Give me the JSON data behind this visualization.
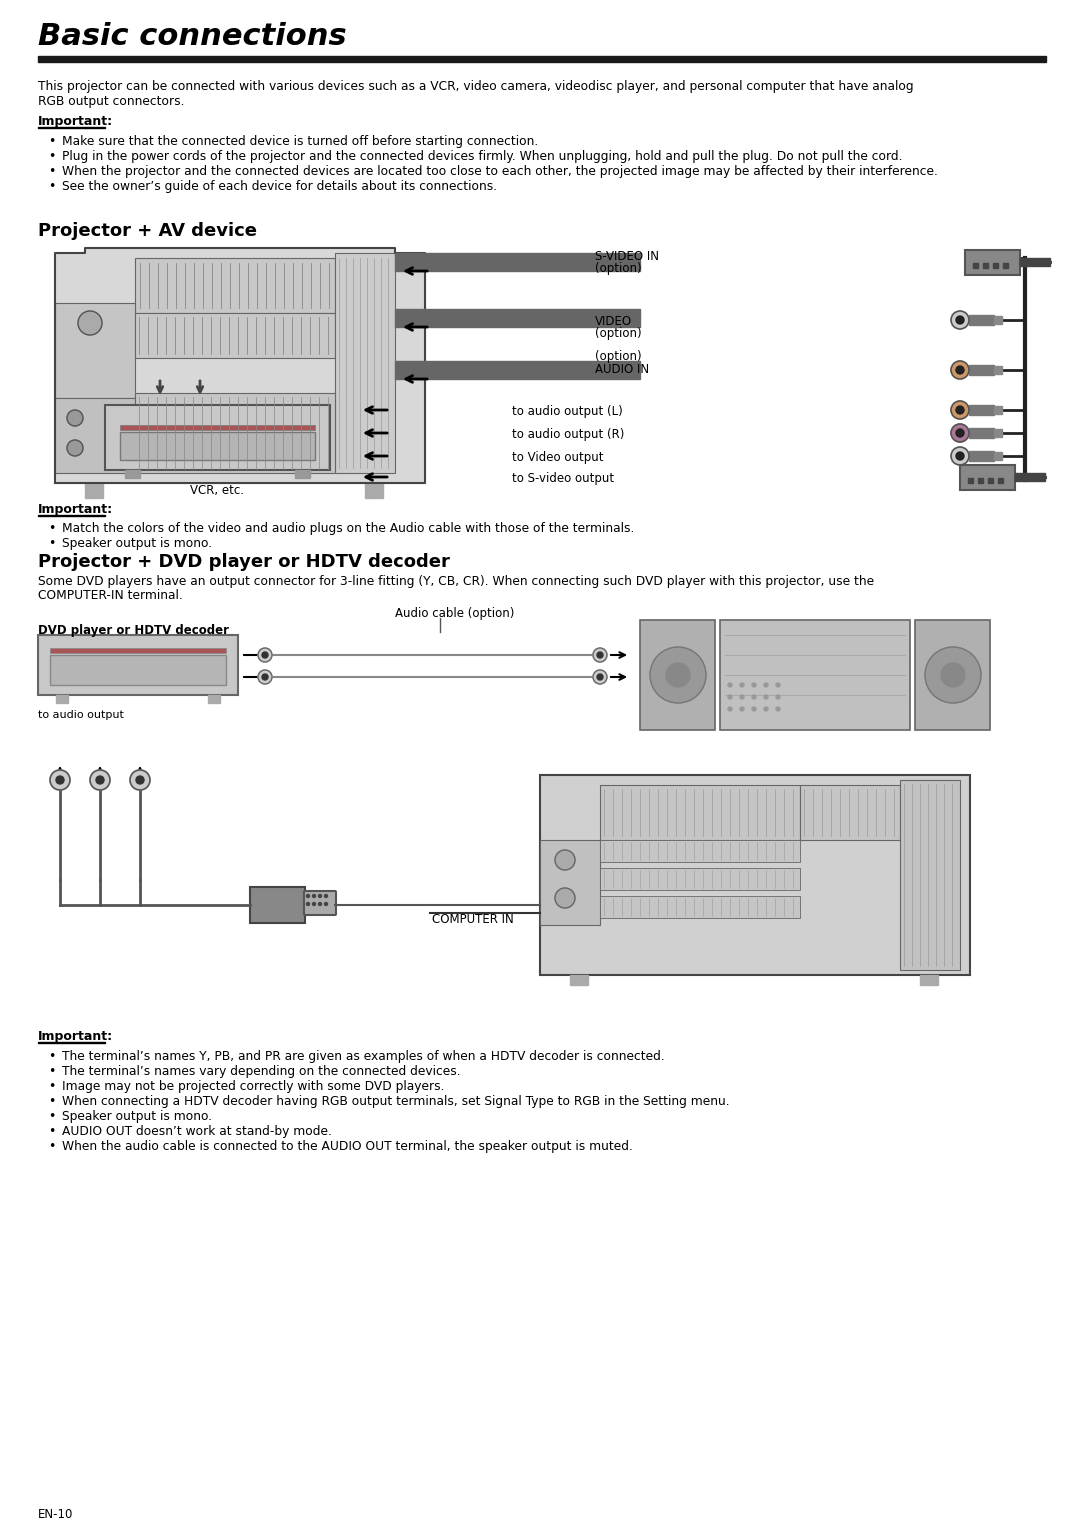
{
  "title": "Basic connections",
  "bg_color": "#ffffff",
  "text_color": "#000000",
  "page_number": "EN-10",
  "intro_line1": "This projector can be connected with various devices such as a VCR, video camera, videodisc player, and personal computer that have analog",
  "intro_line2": "RGB output connectors.",
  "important_label": "Important:",
  "important_bullets_top": [
    "Make sure that the connected device is turned off before starting connection.",
    "Plug in the power cords of the projector and the connected devices firmly. When unplugging, hold and pull the plug. Do not pull the cord.",
    "When the projector and the connected devices are located too close to each other, the projected image may be affected by their interference.",
    "See the owner’s guide of each device for details about its connections."
  ],
  "section1_title": "Projector + AV device",
  "vcr_label": "VCR, etc.",
  "section2_title": "Projector + DVD player or HDTV decoder",
  "section2_intro_line1": "Some DVD players have an output connector for 3-line fitting (Y, CB, CR). When connecting such DVD player with this projector, use the",
  "section2_intro_line2": "COMPUTER-IN terminal.",
  "audio_cable_label": "Audio cable (option)",
  "dvd_label": "DVD player or HDTV decoder",
  "to_audio_output": "to audio output",
  "computer_in_label": "COMPUTER IN",
  "important_label2": "Important:",
  "important_bullets_bottom": [
    "The terminal’s names Y, PB, and PR are given as examples of when a HDTV decoder is connected.",
    "The terminal’s names vary depending on the connected devices.",
    "Image may not be projected correctly with some DVD players.",
    "When connecting a HDTV decoder having RGB output terminals, set Signal Type to RGB in the Setting menu.",
    "Speaker output is mono.",
    "AUDIO OUT doesn’t work at stand-by mode.",
    "When the audio cable is connected to the AUDIO OUT terminal, the speaker output is muted."
  ],
  "important_bullets_av": [
    "Match the colors of the video and audio plugs on the Audio cable with those of the terminals.",
    "Speaker output is mono."
  ],
  "svideo_in_label": "S-VIDEO IN",
  "svideo_in_sub": "(option)",
  "video_label": "VIDEO",
  "video_sub": "(option)",
  "option_label": "(option)",
  "audio_in_label": "AUDIO IN",
  "to_audio_l": "to audio output (L)",
  "to_audio_r": "to audio output (R)",
  "to_video_out": "to Video output",
  "to_svideo_out": "to S-video output"
}
